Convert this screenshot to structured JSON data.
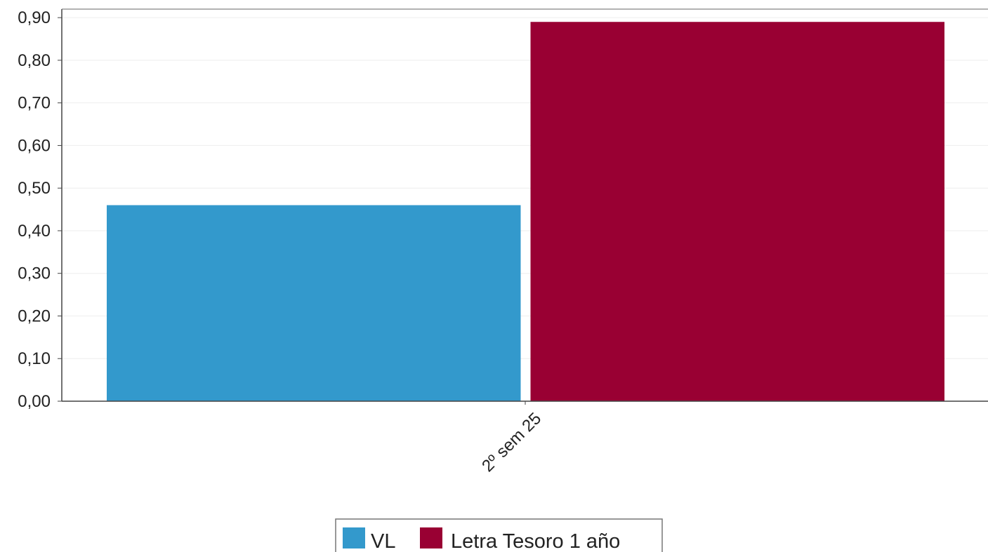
{
  "chart_data": {
    "type": "bar",
    "title": "",
    "xlabel": "",
    "ylabel": "",
    "categories": [
      "2º sem  25"
    ],
    "series": [
      {
        "name": "VL",
        "values": [
          0.46
        ],
        "color": "#3399cc"
      },
      {
        "name": "Letra Tesoro 1 año",
        "values": [
          0.89
        ],
        "color": "#990033"
      }
    ],
    "ylim": [
      0,
      0.92
    ],
    "yticks": [
      0.0,
      0.1,
      0.2,
      0.3,
      0.4,
      0.5,
      0.6,
      0.7,
      0.8,
      0.9
    ],
    "ytick_labels": [
      "0,00",
      "0,10",
      "0,20",
      "0,30",
      "0,40",
      "0,50",
      "0,60",
      "0,70",
      "0,80",
      "0,90"
    ],
    "grid": true,
    "legend_position": "bottom-center",
    "colors": {
      "axis": "#444444",
      "grid": "#eeeeee",
      "text": "#222222"
    }
  }
}
